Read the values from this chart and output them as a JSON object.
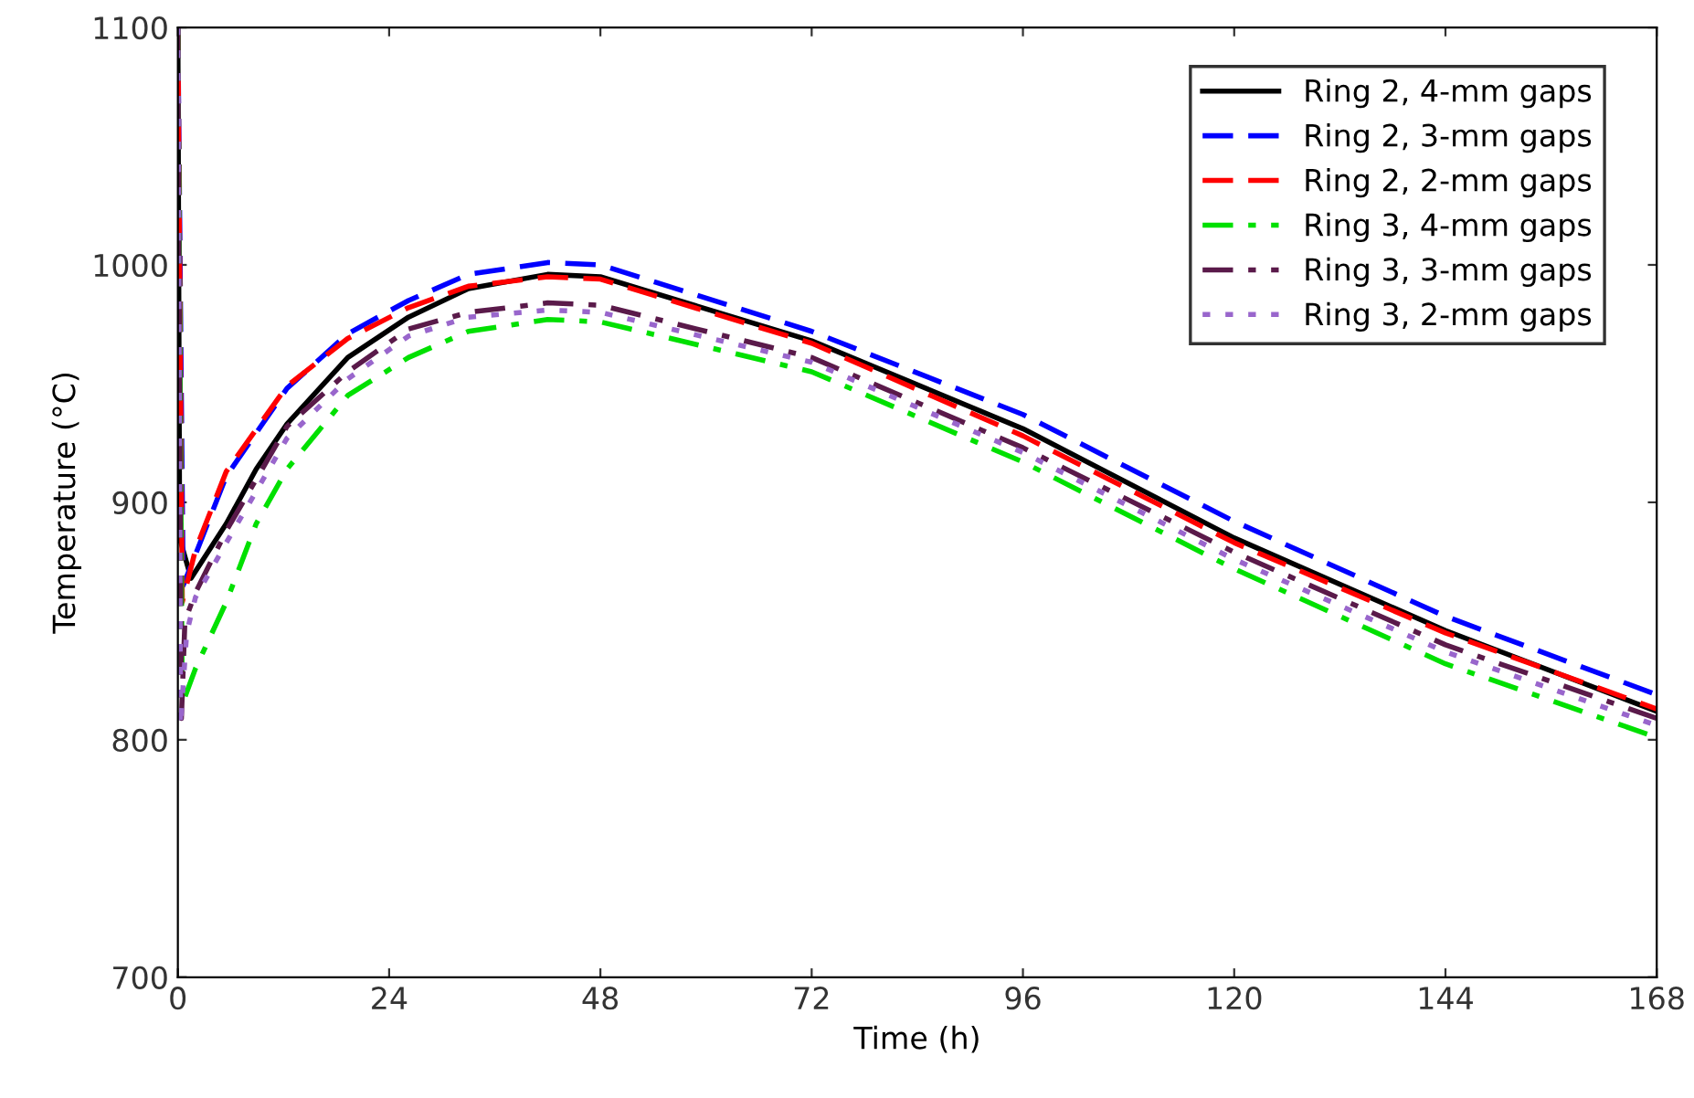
{
  "chart_data": {
    "type": "line",
    "xlabel": "Time (h)",
    "ylabel": "Temperature (°C)",
    "xlim": [
      0,
      168
    ],
    "xticks": [
      0,
      24,
      48,
      72,
      96,
      120,
      144,
      168
    ],
    "ylim": [
      700,
      1100
    ],
    "yticks": [
      700,
      800,
      900,
      1000,
      1100
    ],
    "grid": false,
    "legend": "top right",
    "marker": "none",
    "series": [
      {
        "name": "Ring 2, 4-mm gaps",
        "color": "#000000",
        "line_style": "solid",
        "x": [
          0,
          0.2,
          1.5,
          5.5,
          8.9,
          12.4,
          19.3,
          26.2,
          33,
          42,
          48,
          72,
          96,
          120,
          144,
          168
        ],
        "values": [
          1100,
          885,
          868,
          891,
          914,
          933,
          961,
          978,
          990,
          996,
          995,
          968,
          931,
          885,
          846,
          812
        ]
      },
      {
        "name": "Ring 2, 3-mm gaps",
        "color": "#0000ff",
        "line_style": "dashed",
        "x": [
          0,
          0.6,
          2,
          5.5,
          12.4,
          19.3,
          26.2,
          33,
          42,
          48,
          72,
          96,
          120,
          144,
          168
        ],
        "values": [
          1100,
          865,
          878,
          911,
          948,
          971,
          985,
          996,
          1001,
          1000,
          972,
          937,
          892,
          852,
          819
        ]
      },
      {
        "name": "Ring 2, 2-mm gaps",
        "color": "#ff0000",
        "line_style": "dashed",
        "x": [
          0,
          0.5,
          2,
          5.5,
          12.4,
          19.3,
          26.2,
          33,
          42,
          48,
          72,
          96,
          120,
          144,
          168
        ],
        "values": [
          1100,
          858,
          880,
          913,
          949,
          969,
          982,
          991,
          995,
          994,
          967,
          928,
          883,
          845,
          813
        ]
      },
      {
        "name": "Ring 3, 4-mm gaps",
        "color": "#00e000",
        "line_style": "dashdot",
        "x": [
          0,
          0.5,
          2,
          5.5,
          8.9,
          12.4,
          19.3,
          26.2,
          33,
          42,
          48,
          72,
          96,
          120,
          144,
          168
        ],
        "values": [
          1100,
          815,
          830,
          858,
          891,
          914,
          945,
          961,
          972,
          977,
          976,
          955,
          917,
          872,
          832,
          801
        ]
      },
      {
        "name": "Ring 3, 3-mm gaps",
        "color": "#5a1a4a",
        "line_style": "dashdot",
        "x": [
          0,
          0.4,
          0.8,
          2,
          5.5,
          12.4,
          19.3,
          26.2,
          33,
          42,
          48,
          72,
          96,
          120,
          144,
          168
        ],
        "values": [
          1100,
          809,
          850,
          862,
          888,
          932,
          955,
          973,
          980,
          984,
          983,
          961,
          923,
          879,
          840,
          809
        ]
      },
      {
        "name": "Ring 3, 2-mm gaps",
        "color": "#9966cc",
        "line_style": "dotted",
        "x": [
          0,
          0.3,
          1,
          2,
          5.5,
          12.4,
          19.3,
          26.2,
          33,
          42,
          48,
          72,
          96,
          120,
          144,
          168
        ],
        "values": [
          1100,
          806,
          845,
          860,
          883,
          927,
          952,
          970,
          978,
          981,
          980,
          959,
          921,
          876,
          837,
          806
        ]
      }
    ]
  }
}
